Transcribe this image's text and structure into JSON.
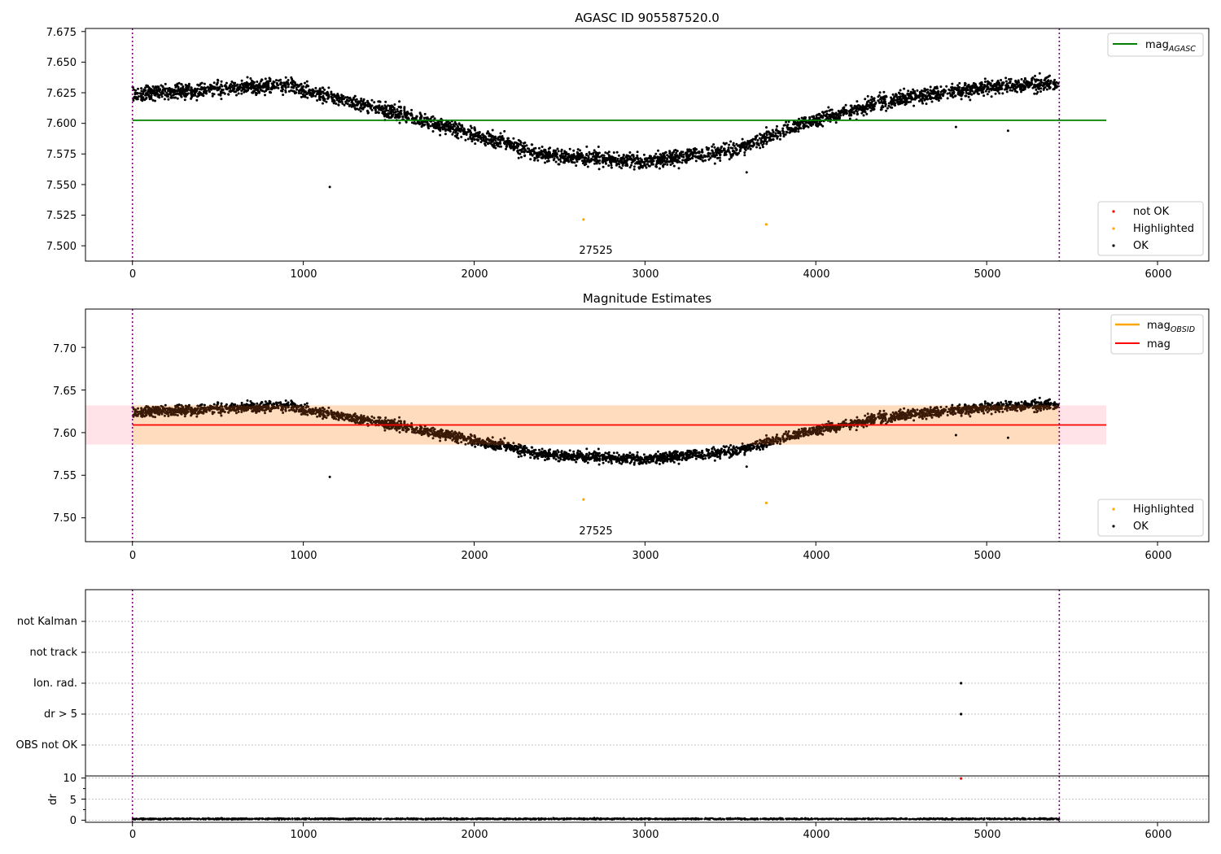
{
  "colors": {
    "ok": "#000000",
    "not_ok": "#ff0000",
    "highlighted": "#ffa500",
    "agasc_line": "#008000",
    "mag_line": "#ff0000",
    "mag_obsid": "#ffa500",
    "obs_boundary": "#800080",
    "band_outer": "#ffc0cb",
    "band_inner": "#ffdab9",
    "band_points": "#3a1a06"
  },
  "chart_data": [
    {
      "type": "scatter",
      "title": "AGASC ID 905587520.0",
      "xlim": [
        -275,
        6300
      ],
      "ylim": [
        7.4875,
        7.6775
      ],
      "xticks": [
        "0",
        "1000",
        "2000",
        "3000",
        "4000",
        "5000",
        "6000"
      ],
      "yticks": [
        "7.500",
        "7.525",
        "7.550",
        "7.575",
        "7.600",
        "7.625",
        "7.650",
        "7.675"
      ],
      "obs_boundaries": [
        0,
        5425
      ],
      "obsid_label": "27525",
      "lines": [
        {
          "name": "mag",
          "subscript": "AGASC",
          "y": 7.6025,
          "x": [
            0,
            5700
          ]
        }
      ],
      "trend": {
        "x": [
          0,
          500,
          900,
          1200,
          1600,
          2000,
          2400,
          3000,
          3500,
          4000,
          4400,
          5000,
          5425
        ],
        "y": [
          7.624,
          7.628,
          7.631,
          7.621,
          7.606,
          7.591,
          7.574,
          7.569,
          7.578,
          7.603,
          7.618,
          7.63,
          7.633
        ]
      },
      "band": null,
      "outliers_ok": [
        {
          "x": 1155,
          "y": 7.548
        },
        {
          "x": 3595,
          "y": 7.56
        },
        {
          "x": 4820,
          "y": 7.597
        },
        {
          "x": 5125,
          "y": 7.594
        }
      ],
      "highlighted": [
        {
          "x": 2640,
          "y": 7.5215
        },
        {
          "x": 3710,
          "y": 7.5175
        }
      ],
      "legends": [
        {
          "position": "upper-right",
          "entries": [
            {
              "label": "mag",
              "subscript": "AGASC",
              "kind": "line",
              "color": "#008000"
            }
          ]
        },
        {
          "position": "lower-right",
          "entries": [
            {
              "label": "not OK",
              "kind": "dot",
              "color": "#ff0000"
            },
            {
              "label": "Highlighted",
              "kind": "dot",
              "color": "#ffa500"
            },
            {
              "label": "OK",
              "kind": "dot",
              "color": "#000000"
            }
          ]
        }
      ]
    },
    {
      "type": "scatter",
      "title": "Magnitude Estimates",
      "xlim": [
        -275,
        6300
      ],
      "ylim": [
        7.472,
        7.745
      ],
      "xticks": [
        "0",
        "1000",
        "2000",
        "3000",
        "4000",
        "5000",
        "6000"
      ],
      "yticks": [
        "7.50",
        "7.55",
        "7.60",
        "7.65",
        "7.70"
      ],
      "obs_boundaries": [
        0,
        5425
      ],
      "obsid_label": "27525",
      "lines": [
        {
          "name": "mag",
          "y": 7.609,
          "x": [
            0,
            5700
          ]
        }
      ],
      "trend": {
        "x": [
          0,
          500,
          900,
          1200,
          1600,
          2000,
          2400,
          3000,
          3500,
          4000,
          4400,
          5000,
          5425
        ],
        "y": [
          7.624,
          7.628,
          7.631,
          7.621,
          7.606,
          7.591,
          7.574,
          7.569,
          7.578,
          7.603,
          7.618,
          7.63,
          7.633
        ]
      },
      "band": {
        "x": [
          -275,
          5700
        ],
        "outer": [
          7.586,
          7.632
        ],
        "inner": [
          7.586,
          7.632
        ]
      },
      "outliers_ok": [
        {
          "x": 1155,
          "y": 7.548
        },
        {
          "x": 3595,
          "y": 7.56
        },
        {
          "x": 4820,
          "y": 7.597
        },
        {
          "x": 5125,
          "y": 7.594
        }
      ],
      "highlighted": [
        {
          "x": 2640,
          "y": 7.5215
        },
        {
          "x": 3710,
          "y": 7.5175
        }
      ],
      "legends": [
        {
          "position": "upper-right",
          "entries": [
            {
              "label": "mag",
              "subscript": "OBSID",
              "kind": "line",
              "color": "#ffa500"
            },
            {
              "label": "mag",
              "kind": "line",
              "color": "#ff0000"
            }
          ]
        },
        {
          "position": "lower-right",
          "entries": [
            {
              "label": "Highlighted",
              "kind": "dot",
              "color": "#ffa500"
            },
            {
              "label": "OK",
              "kind": "dot",
              "color": "#000000"
            }
          ]
        }
      ]
    },
    {
      "type": "scatter",
      "title": "",
      "xlim": [
        -275,
        6300
      ],
      "obs_boundaries": [
        0,
        5425
      ],
      "flag_categories": [
        "not Kalman",
        "not track",
        "Ion. rad.",
        "dr > 5",
        "OBS not OK"
      ],
      "flag_points": [
        {
          "category": "Ion. rad.",
          "x": 4850
        },
        {
          "category": "dr > 5",
          "x": 4850
        }
      ]
    },
    {
      "type": "scatter",
      "title": "",
      "ylabel": "dr",
      "xlim": [
        -275,
        6300
      ],
      "ylim": [
        -0.5,
        10.5
      ],
      "xticks": [
        "0",
        "1000",
        "2000",
        "3000",
        "4000",
        "5000",
        "6000"
      ],
      "yticks": [
        "0",
        "5",
        "10"
      ],
      "obs_boundaries": [
        0,
        5425
      ],
      "dr_typical": 0.3,
      "dr_outliers": [
        {
          "x": 4850,
          "y": 9.9
        }
      ]
    }
  ]
}
